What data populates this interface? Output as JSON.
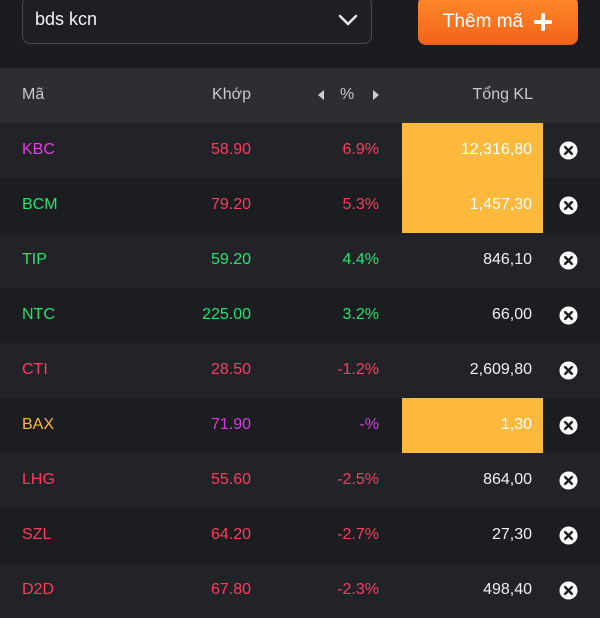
{
  "search": {
    "value": "bds kcn",
    "dropdown_icon": "chevron-down-icon"
  },
  "add_button": {
    "label": "Thêm mã",
    "icon": "plus-icon",
    "color": "#f47321"
  },
  "table": {
    "headers": {
      "code": "Mã",
      "price": "Khớp",
      "pct": "%",
      "volume": "Tổng KL"
    },
    "rows": [
      {
        "code": "KBC",
        "price": "58.90",
        "pct": "6.9%",
        "volume": "12,316,80",
        "code_color": "#e83ce8",
        "value_color": "#ff3b5c",
        "highlight": true
      },
      {
        "code": "BCM",
        "price": "79.20",
        "pct": "5.3%",
        "volume": "1,457,30",
        "code_color": "#22e36c",
        "value_color": "#ff3b5c",
        "highlight": true
      },
      {
        "code": "TIP",
        "price": "59.20",
        "pct": "4.4%",
        "volume": "846,10",
        "code_color": "#22e36c",
        "value_color": "#22e36c",
        "highlight": false
      },
      {
        "code": "NTC",
        "price": "225.00",
        "pct": "3.2%",
        "volume": "66,00",
        "code_color": "#22e36c",
        "value_color": "#22e36c",
        "highlight": false
      },
      {
        "code": "CTI",
        "price": "28.50",
        "pct": "-1.2%",
        "volume": "2,609,80",
        "code_color": "#ff3b5c",
        "value_color": "#ff3b5c",
        "highlight": false
      },
      {
        "code": "BAX",
        "price": "71.90",
        "pct": "-%",
        "volume": "1,30",
        "code_color": "#fdb93b",
        "value_color": "#d63be0",
        "highlight": true
      },
      {
        "code": "LHG",
        "price": "55.60",
        "pct": "-2.5%",
        "volume": "864,00",
        "code_color": "#ff3b5c",
        "value_color": "#ff3b5c",
        "highlight": false
      },
      {
        "code": "SZL",
        "price": "64.20",
        "pct": "-2.7%",
        "volume": "27,30",
        "code_color": "#ff3b5c",
        "value_color": "#ff3b5c",
        "highlight": false
      },
      {
        "code": "D2D",
        "price": "67.80",
        "pct": "-2.3%",
        "volume": "498,40",
        "code_color": "#ff3b5c",
        "value_color": "#ff3b5c",
        "highlight": false
      }
    ]
  }
}
